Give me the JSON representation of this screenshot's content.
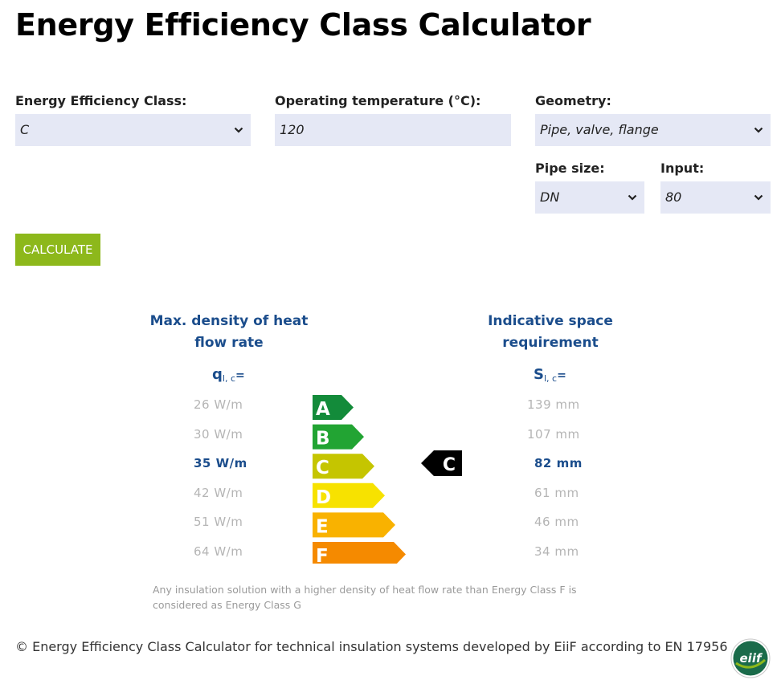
{
  "page": {
    "title": "Energy Efficiency Class Calculator"
  },
  "form": {
    "class_label": "Energy Efficiency Class:",
    "class_value": "C",
    "temp_label": "Operating temperature (°C):",
    "temp_value": "120",
    "geometry_label": "Geometry:",
    "geometry_value": "Pipe, valve, flange",
    "pipe_size_label": "Pipe size:",
    "pipe_size_value": "DN",
    "input_label": "Input:",
    "input_value": "80",
    "calculate_label": "CALCULATE"
  },
  "results": {
    "left_heading_line1": "Max. density of heat",
    "left_heading_line2": "flow rate",
    "left_symbol": "q",
    "left_symbol_sub": "l, c",
    "right_heading_line1": "Indicative space",
    "right_heading_line2": "requirement",
    "right_symbol": "S",
    "right_symbol_sub": "l, c",
    "equals": "=",
    "active_class": "C",
    "rows": [
      {
        "class": "A",
        "heat": "26 W/m",
        "space": "139 mm",
        "color": "#138b3a"
      },
      {
        "class": "B",
        "heat": "30 W/m",
        "space": "107 mm",
        "color": "#22a433"
      },
      {
        "class": "C",
        "heat": "35 W/m",
        "space": "82 mm",
        "color": "#c5c500"
      },
      {
        "class": "D",
        "heat": "42 W/m",
        "space": "61 mm",
        "color": "#f7e200"
      },
      {
        "class": "E",
        "heat": "51 W/m",
        "space": "46 mm",
        "color": "#f9b200"
      },
      {
        "class": "F",
        "heat": "64 W/m",
        "space": "34 mm",
        "color": "#f58a00"
      }
    ],
    "note": "Any insulation solution with a higher density of heat flow rate than Energy Class F is considered as Energy Class G"
  },
  "footer": {
    "text": "© Energy Efficiency Class Calculator for technical insulation systems developed by EiiF according to EN 17956",
    "logo_text": "eiif"
  },
  "colors": {
    "accent_green": "#8db81b",
    "heading_blue": "#1b4d8c",
    "field_bg": "#e5e8f5"
  }
}
